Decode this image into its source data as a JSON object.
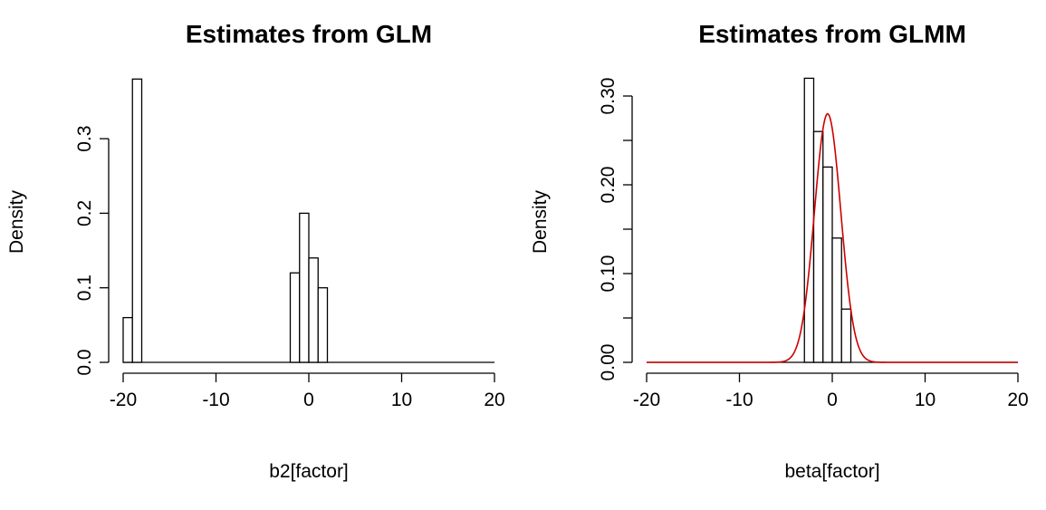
{
  "chart_data": [
    {
      "type": "bar",
      "title": "Estimates from GLM",
      "xlabel": "b2[factor]",
      "ylabel": "Density",
      "xlim": [
        -20,
        20
      ],
      "ylim": [
        0,
        0.38
      ],
      "xticks": [
        -20,
        -10,
        0,
        10,
        20
      ],
      "xtick_labels": [
        "-20",
        "-10",
        "0",
        "10",
        "20"
      ],
      "yticks": [
        0.0,
        0.1,
        0.2,
        0.3
      ],
      "ytick_labels": [
        "0.0",
        "0.1",
        "0.2",
        "0.3"
      ],
      "bins": [
        [
          -20,
          -19
        ],
        [
          -19,
          -18
        ],
        [
          -2,
          -1
        ],
        [
          -1,
          0
        ],
        [
          0,
          1
        ],
        [
          1,
          2
        ]
      ],
      "values": [
        0.06,
        0.38,
        0.12,
        0.2,
        0.14,
        0.1
      ],
      "grid": false
    },
    {
      "type": "bar",
      "title": "Estimates from GLMM",
      "xlabel": "beta[factor]",
      "ylabel": "Density",
      "xlim": [
        -20,
        20
      ],
      "ylim": [
        0,
        0.32
      ],
      "xticks": [
        -20,
        -10,
        0,
        10,
        20
      ],
      "xtick_labels": [
        "-20",
        "-10",
        "0",
        "10",
        "20"
      ],
      "yticks": [
        0.0,
        0.05,
        0.1,
        0.15,
        0.2,
        0.25,
        0.3
      ],
      "ytick_labels": [
        "0.00",
        "",
        "0.10",
        "",
        "0.20",
        "",
        "0.30"
      ],
      "bins": [
        [
          -3,
          -2
        ],
        [
          -2,
          -1
        ],
        [
          -1,
          0
        ],
        [
          0,
          1
        ],
        [
          1,
          2
        ]
      ],
      "values": [
        0.32,
        0.26,
        0.22,
        0.14,
        0.06
      ],
      "overlay": {
        "type": "normal-density-line",
        "color": "#cc0000",
        "mean": -0.5,
        "sd": 1.42,
        "peak": 0.28
      },
      "grid": false
    }
  ]
}
